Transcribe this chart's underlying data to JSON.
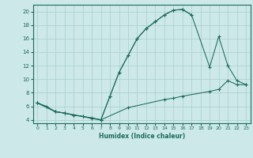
{
  "xlabel": "Humidex (Indice chaleur)",
  "bg_color": "#cce8e8",
  "grid_color": "#aacece",
  "line_color": "#1a6b5a",
  "xlim": [
    -0.5,
    23.5
  ],
  "ylim": [
    3.5,
    21.0
  ],
  "xticks": [
    0,
    1,
    2,
    3,
    4,
    5,
    6,
    7,
    8,
    9,
    10,
    11,
    12,
    13,
    14,
    15,
    16,
    17,
    18,
    19,
    20,
    21,
    22,
    23
  ],
  "yticks": [
    4,
    6,
    8,
    10,
    12,
    14,
    16,
    18,
    20
  ],
  "curve1_x": [
    0,
    1,
    2,
    3,
    4,
    5,
    6,
    7,
    8,
    9,
    10,
    11,
    12,
    13,
    14,
    15,
    16,
    17
  ],
  "curve1_y": [
    6.5,
    6.0,
    5.2,
    5.0,
    4.7,
    4.5,
    4.3,
    4.0,
    7.5,
    11.0,
    13.5,
    16.0,
    17.5,
    18.5,
    19.5,
    20.2,
    20.3,
    19.5
  ],
  "curve2_x": [
    0,
    2,
    3,
    4,
    5,
    6,
    7,
    8,
    9,
    10,
    11,
    12,
    13,
    14,
    15,
    16,
    17,
    19,
    20,
    21,
    22,
    23
  ],
  "curve2_y": [
    6.5,
    5.2,
    5.0,
    4.7,
    4.5,
    4.2,
    4.0,
    7.5,
    11.0,
    13.5,
    16.0,
    17.5,
    18.5,
    19.5,
    20.2,
    20.3,
    19.5,
    11.8,
    16.3,
    12.0,
    9.8,
    9.2
  ],
  "curve3_x": [
    0,
    2,
    3,
    7,
    10,
    14,
    15,
    16,
    19,
    20,
    21,
    22,
    23
  ],
  "curve3_y": [
    6.5,
    5.2,
    5.0,
    4.0,
    5.8,
    7.0,
    7.2,
    7.5,
    8.2,
    8.5,
    9.8,
    9.2,
    9.2
  ]
}
